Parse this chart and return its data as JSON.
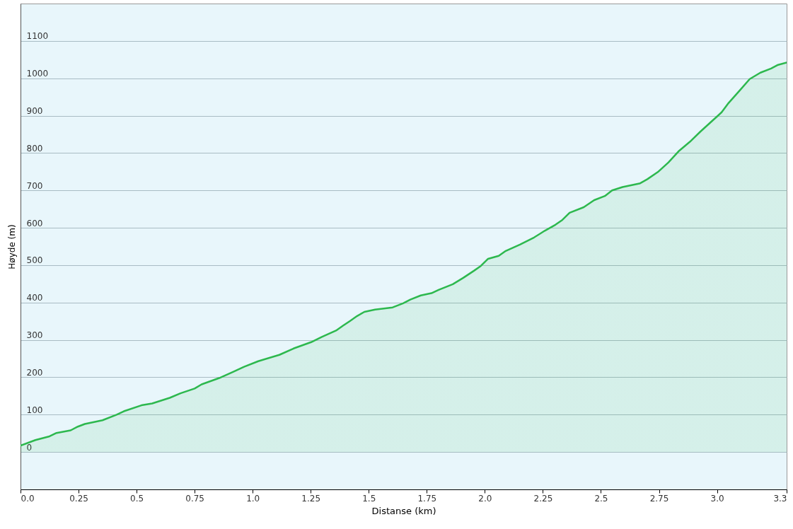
{
  "chart_data": {
    "type": "area",
    "xlabel": "Distanse  (km)",
    "ylabel": "Høyde (m)",
    "xlim": [
      0,
      3.3
    ],
    "ylim": [
      -100,
      1200
    ],
    "xticks": [
      {
        "value": 0,
        "label": "0.0"
      },
      0.25,
      0.5,
      0.75,
      {
        "value": 1,
        "label": "1.0"
      },
      1.25,
      1.5,
      1.75,
      {
        "value": 2,
        "label": "2.0"
      },
      2.25,
      2.5,
      2.75,
      {
        "value": 3,
        "label": "3.0"
      },
      3.3
    ],
    "yticks": [
      0,
      100,
      200,
      300,
      400,
      500,
      600,
      700,
      800,
      900,
      1000,
      1100
    ],
    "grid": "y",
    "marker": "none",
    "line_style": "solid",
    "series": [
      {
        "color": "#2db84e",
        "x": [
          0,
          0.064,
          0.125,
          0.155,
          0.216,
          0.247,
          0.277,
          0.353,
          0.414,
          0.445,
          0.521,
          0.567,
          0.643,
          0.689,
          0.75,
          0.78,
          0.856,
          0.917,
          0.963,
          1.024,
          1.115,
          1.176,
          1.252,
          1.298,
          1.359,
          1.389,
          1.42,
          1.45,
          1.481,
          1.527,
          1.603,
          1.648,
          1.679,
          1.724,
          1.77,
          1.801,
          1.862,
          1.907,
          1.953,
          1.983,
          2.014,
          2.06,
          2.09,
          2.151,
          2.212,
          2.258,
          2.304,
          2.334,
          2.365,
          2.426,
          2.471,
          2.517,
          2.548,
          2.593,
          2.669,
          2.7,
          2.745,
          2.791,
          2.837,
          2.883,
          2.928,
          2.974,
          3.02,
          3.05,
          3.096,
          3.141,
          3.187,
          3.233,
          3.263,
          3.3
        ],
        "values": [
          17,
          32,
          42,
          51,
          58,
          68,
          75,
          85,
          100,
          109,
          125,
          130,
          145,
          157,
          170,
          181,
          198,
          215,
          228,
          243,
          260,
          277,
          294,
          308,
          325,
          338,
          351,
          364,
          375,
          381,
          387,
          398,
          408,
          419,
          425,
          434,
          449,
          466,
          485,
          498,
          517,
          525,
          538,
          555,
          574,
          592,
          608,
          621,
          640,
          655,
          674,
          685,
          700,
          709,
          719,
          730,
          749,
          775,
          806,
          830,
          857,
          883,
          909,
          934,
          966,
          998,
          1015,
          1026,
          1036,
          1042
        ]
      }
    ]
  }
}
